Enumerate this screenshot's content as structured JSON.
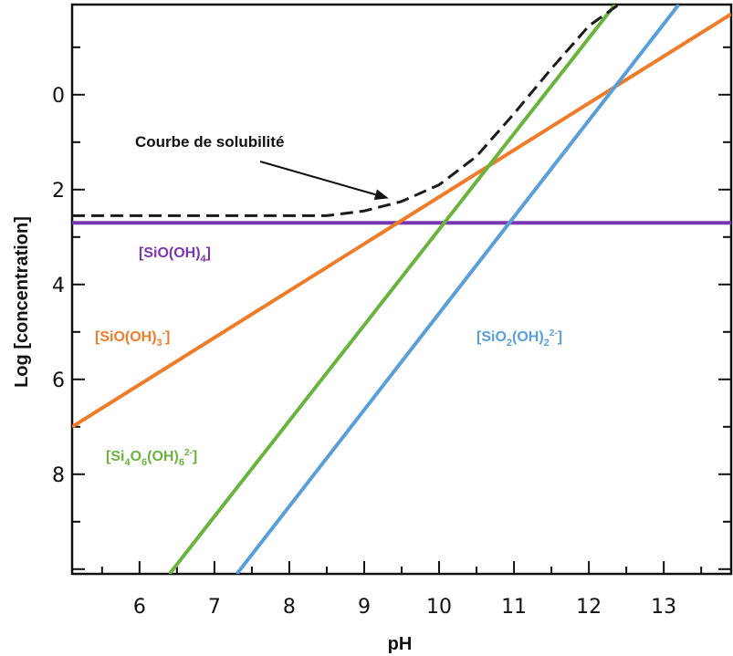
{
  "chart_data": {
    "type": "line",
    "xlabel": "pH",
    "ylabel": "Log [concentration]",
    "xlim": [
      5.1,
      13.9
    ],
    "ylim": [
      10.1,
      -1.9
    ],
    "y_inverted": true,
    "x_ticks": [
      6,
      7,
      8,
      9,
      10,
      11,
      12,
      13
    ],
    "y_ticks": [
      0,
      2,
      4,
      6,
      8
    ],
    "series": [
      {
        "name": "[SiO(OH)4]",
        "color": "#7b36b4",
        "style": "solid",
        "x": [
          5.1,
          13.9
        ],
        "y": [
          2.7,
          2.7
        ]
      },
      {
        "name": "[SiO(OH)3-]",
        "color": "#f07c2a",
        "style": "solid",
        "x": [
          5.1,
          13.9
        ],
        "y": [
          7.0,
          -1.7
        ]
      },
      {
        "name": "[Si4O6(OH)6 2-]",
        "color": "#6ab43e",
        "style": "solid",
        "x": [
          6.4,
          12.35
        ],
        "y": [
          10.1,
          -1.9
        ]
      },
      {
        "name": "[SiO2(OH)2 2-]",
        "color": "#5a9fd8",
        "style": "solid",
        "x": [
          7.3,
          13.2
        ],
        "y": [
          10.1,
          -1.9
        ]
      },
      {
        "name": "Courbe de solubilité",
        "color": "#1a1a1a",
        "style": "dashed",
        "x": [
          5.1,
          8.5,
          9.0,
          9.5,
          10.0,
          10.5,
          11.0,
          11.5,
          12.0,
          12.4
        ],
        "y": [
          2.55,
          2.55,
          2.45,
          2.25,
          1.9,
          1.3,
          0.4,
          -0.55,
          -1.45,
          -1.9
        ]
      }
    ],
    "labels": {
      "sio_oh4": {
        "base": "[SiO(OH)",
        "sub": "4",
        "end": "]"
      },
      "sio_oh3": {
        "base": "[SiO(OH)",
        "sub": "3",
        "sup": "-",
        "end": "]"
      },
      "si4o6": {
        "a": "[Si",
        "s1": "4",
        "b": "O",
        "s2": "6",
        "c": "(OH)",
        "s3": "6",
        "sup": "2-",
        "end": "]"
      },
      "sio2": {
        "a": "[SiO",
        "s1": "2",
        "b": "(OH)",
        "s2": "2",
        "sup": "2-",
        "end": "]"
      }
    },
    "annotation": {
      "text": "Courbe de solubilité",
      "points_to": [
        9.4,
        2.3
      ]
    }
  }
}
